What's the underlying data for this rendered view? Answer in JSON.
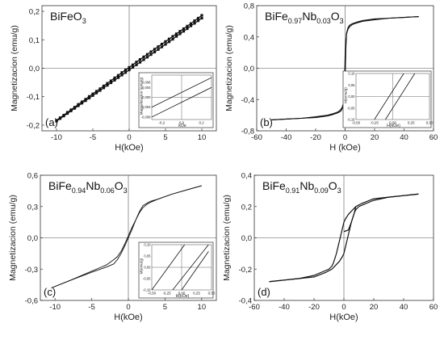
{
  "figure": {
    "panels": [
      {
        "id": "a",
        "letter": "(a)",
        "title_parts": [
          [
            "BiFeO",
            "base"
          ],
          [
            "3",
            "sub"
          ]
        ],
        "xlabel": "H(kOe)",
        "ylabel": "Magnetizacion (emu/g)",
        "inset": {
          "xlabel": "kOe",
          "ylabel": "Magnetizacion (emu/g)",
          "xticks": [
            "-0,2",
            "0,0",
            "0,2"
          ],
          "yticks": [
            "0,006",
            "0,004",
            "0,000",
            "-0,004",
            "-0,008"
          ]
        }
      },
      {
        "id": "b",
        "letter": "(b)",
        "title_parts": [
          [
            "BiFe",
            "base"
          ],
          [
            "0.97",
            "sub"
          ],
          [
            "Nb",
            "base"
          ],
          [
            "0.03",
            "sub"
          ],
          [
            "O",
            "base"
          ],
          [
            "3",
            "sub"
          ]
        ],
        "xlabel": "H (kOe)",
        "ylabel": "Magnetizacion (emu/g)",
        "inset": {
          "xlabel": "H(kOe)",
          "ylabel": "M(emu/g)",
          "xticks": [
            "-0,50",
            "-0,25",
            "0,00",
            "0,25",
            "0,50"
          ],
          "yticks": [
            "0,10",
            "0,05",
            "0,00",
            "-0,05",
            "-0,10"
          ]
        }
      },
      {
        "id": "c",
        "letter": "(c)",
        "title_parts": [
          [
            "BiFe",
            "base"
          ],
          [
            "0.94",
            "sub"
          ],
          [
            "Nb",
            "base"
          ],
          [
            "0.06",
            "sub"
          ],
          [
            "O",
            "base"
          ],
          [
            "3",
            "sub"
          ]
        ],
        "xlabel": "H(kOe)",
        "ylabel": "Magnetizacion (emu/g)",
        "inset": {
          "xlabel": "H(kOe)",
          "ylabel": "M(emu/g)",
          "xticks": [
            "-0,50",
            "-0,25",
            "0,00",
            "0,25",
            "0,50"
          ],
          "yticks": [
            "0,10",
            "0,05",
            "0,00",
            "-0,05",
            "-0,10"
          ]
        }
      },
      {
        "id": "d",
        "letter": "(d)",
        "title_parts": [
          [
            "BiFe",
            "base"
          ],
          [
            "0.91",
            "sub"
          ],
          [
            "Nb",
            "base"
          ],
          [
            "0.09",
            "sub"
          ],
          [
            "O",
            "base"
          ],
          [
            "3",
            "sub"
          ]
        ],
        "xlabel": "H(kOe)",
        "ylabel": "Magnetizacion (emu/g)",
        "inset": null
      }
    ]
  },
  "chart_data": [
    {
      "type": "line",
      "panel": "a",
      "title": "BiFeO3",
      "xlabel": "H(kOe)",
      "ylabel": "Magnetizacion (emu/g)",
      "xlim": [
        -12,
        12
      ],
      "ylim": [
        -0.22,
        0.22
      ],
      "xticks": [
        -10,
        -5,
        0,
        5,
        10
      ],
      "xtick_labels": [
        "-10",
        "-5",
        "0",
        "5",
        "10"
      ],
      "yticks": [
        -0.2,
        -0.1,
        0.0,
        0.1,
        0.2
      ],
      "ytick_labels": [
        "-0,2",
        "-0,1",
        "0,0",
        "0,1",
        "0,2"
      ],
      "series": [
        {
          "x": [
            10,
            9.5,
            9,
            8.5,
            8,
            7.5,
            7,
            6.5,
            6,
            5.5,
            5,
            4.5,
            4,
            3.5,
            3,
            2.5,
            2,
            1.5,
            1,
            0.5,
            0,
            -0.5,
            -1,
            -1.5,
            -2,
            -2.5,
            -3,
            -3.5,
            -4,
            -4.5,
            -5,
            -5.5,
            -6,
            -6.5,
            -7,
            -7.5,
            -8,
            -8.5,
            -9,
            -9.5,
            -10
          ],
          "y": [
            0.186,
            0.176,
            0.167,
            0.157,
            0.148,
            0.139,
            0.13,
            0.121,
            0.112,
            0.103,
            0.094,
            0.085,
            0.076,
            0.067,
            0.058,
            0.049,
            0.04,
            0.031,
            0.022,
            0.012,
            0.003,
            -0.006,
            -0.015,
            -0.025,
            -0.034,
            -0.044,
            -0.053,
            -0.062,
            -0.072,
            -0.081,
            -0.09,
            -0.099,
            -0.109,
            -0.118,
            -0.127,
            -0.137,
            -0.146,
            -0.155,
            -0.165,
            -0.174,
            -0.183
          ]
        },
        {
          "x": [
            -10,
            -9.5,
            -9,
            -8.5,
            -8,
            -7.5,
            -7,
            -6.5,
            -6,
            -5.5,
            -5,
            -4.5,
            -4,
            -3.5,
            -3,
            -2.5,
            -2,
            -1.5,
            -1,
            -0.5,
            0,
            0.5,
            1,
            1.5,
            2,
            2.5,
            3,
            3.5,
            4,
            4.5,
            5,
            5.5,
            6,
            6.5,
            7,
            7.5,
            8,
            8.5,
            9,
            9.5,
            10
          ],
          "y": [
            -0.186,
            -0.177,
            -0.168,
            -0.159,
            -0.15,
            -0.141,
            -0.132,
            -0.123,
            -0.114,
            -0.105,
            -0.096,
            -0.087,
            -0.078,
            -0.069,
            -0.06,
            -0.051,
            -0.042,
            -0.033,
            -0.024,
            -0.015,
            -0.006,
            0.003,
            0.012,
            0.021,
            0.03,
            0.039,
            0.048,
            0.057,
            0.066,
            0.075,
            0.084,
            0.093,
            0.102,
            0.112,
            0.121,
            0.13,
            0.139,
            0.149,
            0.158,
            0.167,
            0.176
          ]
        }
      ],
      "markers": true,
      "inset": {
        "type": "line",
        "xlim": [
          -0.3,
          0.3
        ],
        "ylim": [
          -0.009,
          0.009
        ],
        "xticks": [
          -0.2,
          0.0,
          0.2
        ],
        "yticks": [
          0.006,
          0.004,
          0.0,
          -0.004,
          -0.008
        ],
        "series": [
          {
            "x": [
              -0.3,
              0.3
            ],
            "y": [
              -0.008,
              0.004
            ]
          },
          {
            "x": [
              -0.3,
              0.3
            ],
            "y": [
              -0.004,
              0.008
            ]
          }
        ]
      }
    },
    {
      "type": "line",
      "panel": "b",
      "title": "BiFe0.97Nb0.03O3",
      "xlabel": "H (kOe)",
      "ylabel": "Magnetizacion (emu/g)",
      "xlim": [
        -60,
        60
      ],
      "ylim": [
        -0.8,
        0.8
      ],
      "xticks": [
        -60,
        -40,
        -20,
        0,
        20,
        40,
        60
      ],
      "xtick_labels": [
        "-60",
        "-40",
        "-20",
        "0",
        "20",
        "40",
        "60"
      ],
      "yticks": [
        -0.8,
        -0.4,
        0.0,
        0.4,
        0.8
      ],
      "ytick_labels": [
        "-0,8",
        "-0,4",
        "0,0",
        "0,4",
        "0,8"
      ],
      "series": [
        {
          "x": [
            -50,
            -40,
            -30,
            -20,
            -12,
            -8,
            -5,
            -3,
            -2,
            -1,
            -0.5,
            0,
            0.5,
            1,
            2,
            3,
            5,
            8,
            12,
            20,
            30,
            40,
            50
          ],
          "y": [
            -0.66,
            -0.65,
            -0.64,
            -0.62,
            -0.6,
            -0.58,
            -0.56,
            -0.53,
            -0.5,
            -0.44,
            -0.35,
            -0.15,
            0.25,
            0.45,
            0.52,
            0.55,
            0.57,
            0.59,
            0.61,
            0.63,
            0.64,
            0.65,
            0.66
          ]
        },
        {
          "x": [
            50,
            40,
            30,
            20,
            12,
            8,
            5,
            3,
            2,
            1,
            0.5,
            0,
            -0.5,
            -1,
            -2,
            -3,
            -5,
            -8,
            -12,
            -20,
            -30,
            -40,
            -50
          ],
          "y": [
            0.66,
            0.65,
            0.64,
            0.62,
            0.6,
            0.58,
            0.56,
            0.53,
            0.5,
            0.44,
            0.35,
            0.15,
            -0.25,
            -0.45,
            -0.52,
            -0.55,
            -0.57,
            -0.59,
            -0.61,
            -0.63,
            -0.64,
            -0.65,
            -0.66
          ]
        }
      ],
      "inset": {
        "type": "line",
        "xlim": [
          -0.5,
          0.5
        ],
        "ylim": [
          -0.1,
          0.1
        ],
        "xticks": [
          -0.5,
          -0.25,
          0.0,
          0.25,
          0.5
        ],
        "yticks": [
          0.1,
          0.05,
          0.0,
          -0.05,
          -0.1
        ],
        "series": [
          {
            "x": [
              -0.25,
              0.15
            ],
            "y": [
              -0.1,
              0.1
            ]
          },
          {
            "x": [
              -0.1,
              0.3
            ],
            "y": [
              -0.1,
              0.1
            ]
          }
        ]
      }
    },
    {
      "type": "line",
      "panel": "c",
      "title": "BiFe0.94Nb0.06O3",
      "xlabel": "H(kOe)",
      "ylabel": "Magnetizacion (emu/g)",
      "xlim": [
        -12,
        12
      ],
      "ylim": [
        -0.6,
        0.6
      ],
      "xticks": [
        -10,
        -5,
        0,
        5,
        10
      ],
      "xtick_labels": [
        "-10",
        "-5",
        "0",
        "5",
        "10"
      ],
      "yticks": [
        -0.6,
        -0.3,
        0.0,
        0.3,
        0.6
      ],
      "ytick_labels": [
        "-0,6",
        "-0,3",
        "0,0",
        "0,3",
        "0,6"
      ],
      "series": [
        {
          "x": [
            10,
            8,
            6,
            4,
            3,
            2.5,
            2,
            1.5,
            1,
            0.5,
            0,
            -0.5,
            -1,
            -1.5,
            -2,
            -3,
            -5,
            -8,
            -10.5
          ],
          "y": [
            0.5,
            0.46,
            0.42,
            0.37,
            0.34,
            0.32,
            0.29,
            0.24,
            0.17,
            0.1,
            0.02,
            -0.06,
            -0.13,
            -0.18,
            -0.21,
            -0.26,
            -0.32,
            -0.41,
            -0.48
          ]
        },
        {
          "x": [
            -10.5,
            -8,
            -5,
            -3,
            -2,
            -1.5,
            -1,
            -0.5,
            0,
            0.5,
            1,
            1.5,
            2,
            3,
            4,
            6,
            8,
            10
          ],
          "y": [
            -0.48,
            -0.41,
            -0.33,
            -0.28,
            -0.25,
            -0.21,
            -0.15,
            -0.08,
            0.0,
            0.08,
            0.17,
            0.25,
            0.31,
            0.35,
            0.37,
            0.42,
            0.46,
            0.5
          ]
        }
      ],
      "inset": {
        "type": "line",
        "xlim": [
          -0.5,
          0.5
        ],
        "ylim": [
          -0.1,
          0.1
        ],
        "xticks": [
          -0.5,
          -0.25,
          0.0,
          0.25,
          0.5
        ],
        "yticks": [
          0.1,
          0.05,
          0.0,
          -0.05,
          -0.1
        ],
        "series": [
          {
            "x": [
              -0.5,
              0.05
            ],
            "y": [
              -0.1,
              0.1
            ]
          },
          {
            "x": [
              -0.15,
              0.45
            ],
            "y": [
              -0.1,
              0.1
            ]
          },
          {
            "x": [
              0.0,
              0.45
            ],
            "y": [
              -0.1,
              0.07
            ]
          }
        ]
      }
    },
    {
      "type": "line",
      "panel": "d",
      "title": "BiFe0.91Nb0.09O3",
      "xlabel": "H(kOe)",
      "ylabel": "Magnetizacion (emu/g)",
      "xlim": [
        -60,
        60
      ],
      "ylim": [
        -0.4,
        0.4
      ],
      "xticks": [
        -60,
        -40,
        -20,
        0,
        20,
        40,
        60
      ],
      "xtick_labels": [
        "-60",
        "-40",
        "-20",
        "0",
        "20",
        "40",
        "60"
      ],
      "yticks": [
        -0.4,
        -0.2,
        0.0,
        0.2,
        0.4
      ],
      "ytick_labels": [
        "-0,4",
        "-0,2",
        "0,0",
        "0,2",
        "0,4"
      ],
      "series": [
        {
          "x": [
            50,
            40,
            30,
            20,
            12,
            8,
            5,
            3,
            1,
            0,
            -1,
            -2,
            -3,
            -4,
            -5,
            -6,
            -7,
            -8,
            -10,
            -15,
            -20,
            -30,
            -40,
            -50
          ],
          "y": [
            0.28,
            0.27,
            0.26,
            0.25,
            0.22,
            0.2,
            0.17,
            0.15,
            0.12,
            0.1,
            0.06,
            0.02,
            -0.02,
            -0.06,
            -0.1,
            -0.13,
            -0.16,
            -0.18,
            -0.2,
            -0.22,
            -0.24,
            -0.26,
            -0.27,
            -0.28
          ]
        },
        {
          "x": [
            -50,
            -40,
            -30,
            -20,
            -12,
            -8,
            -5,
            -3,
            -1,
            0,
            1,
            2,
            3,
            4,
            5,
            6,
            7,
            8,
            10,
            15,
            20,
            30,
            40,
            50
          ],
          "y": [
            -0.28,
            -0.27,
            -0.26,
            -0.25,
            -0.22,
            -0.2,
            -0.17,
            -0.15,
            -0.12,
            -0.1,
            -0.06,
            -0.02,
            0.02,
            0.06,
            0.1,
            0.13,
            0.16,
            0.18,
            0.2,
            0.22,
            0.24,
            0.26,
            0.27,
            0.28
          ]
        },
        {
          "x": [
            0,
            3,
            5,
            7,
            8
          ],
          "y": [
            0.04,
            0.05,
            0.1,
            0.16,
            0.2
          ]
        }
      ]
    }
  ]
}
